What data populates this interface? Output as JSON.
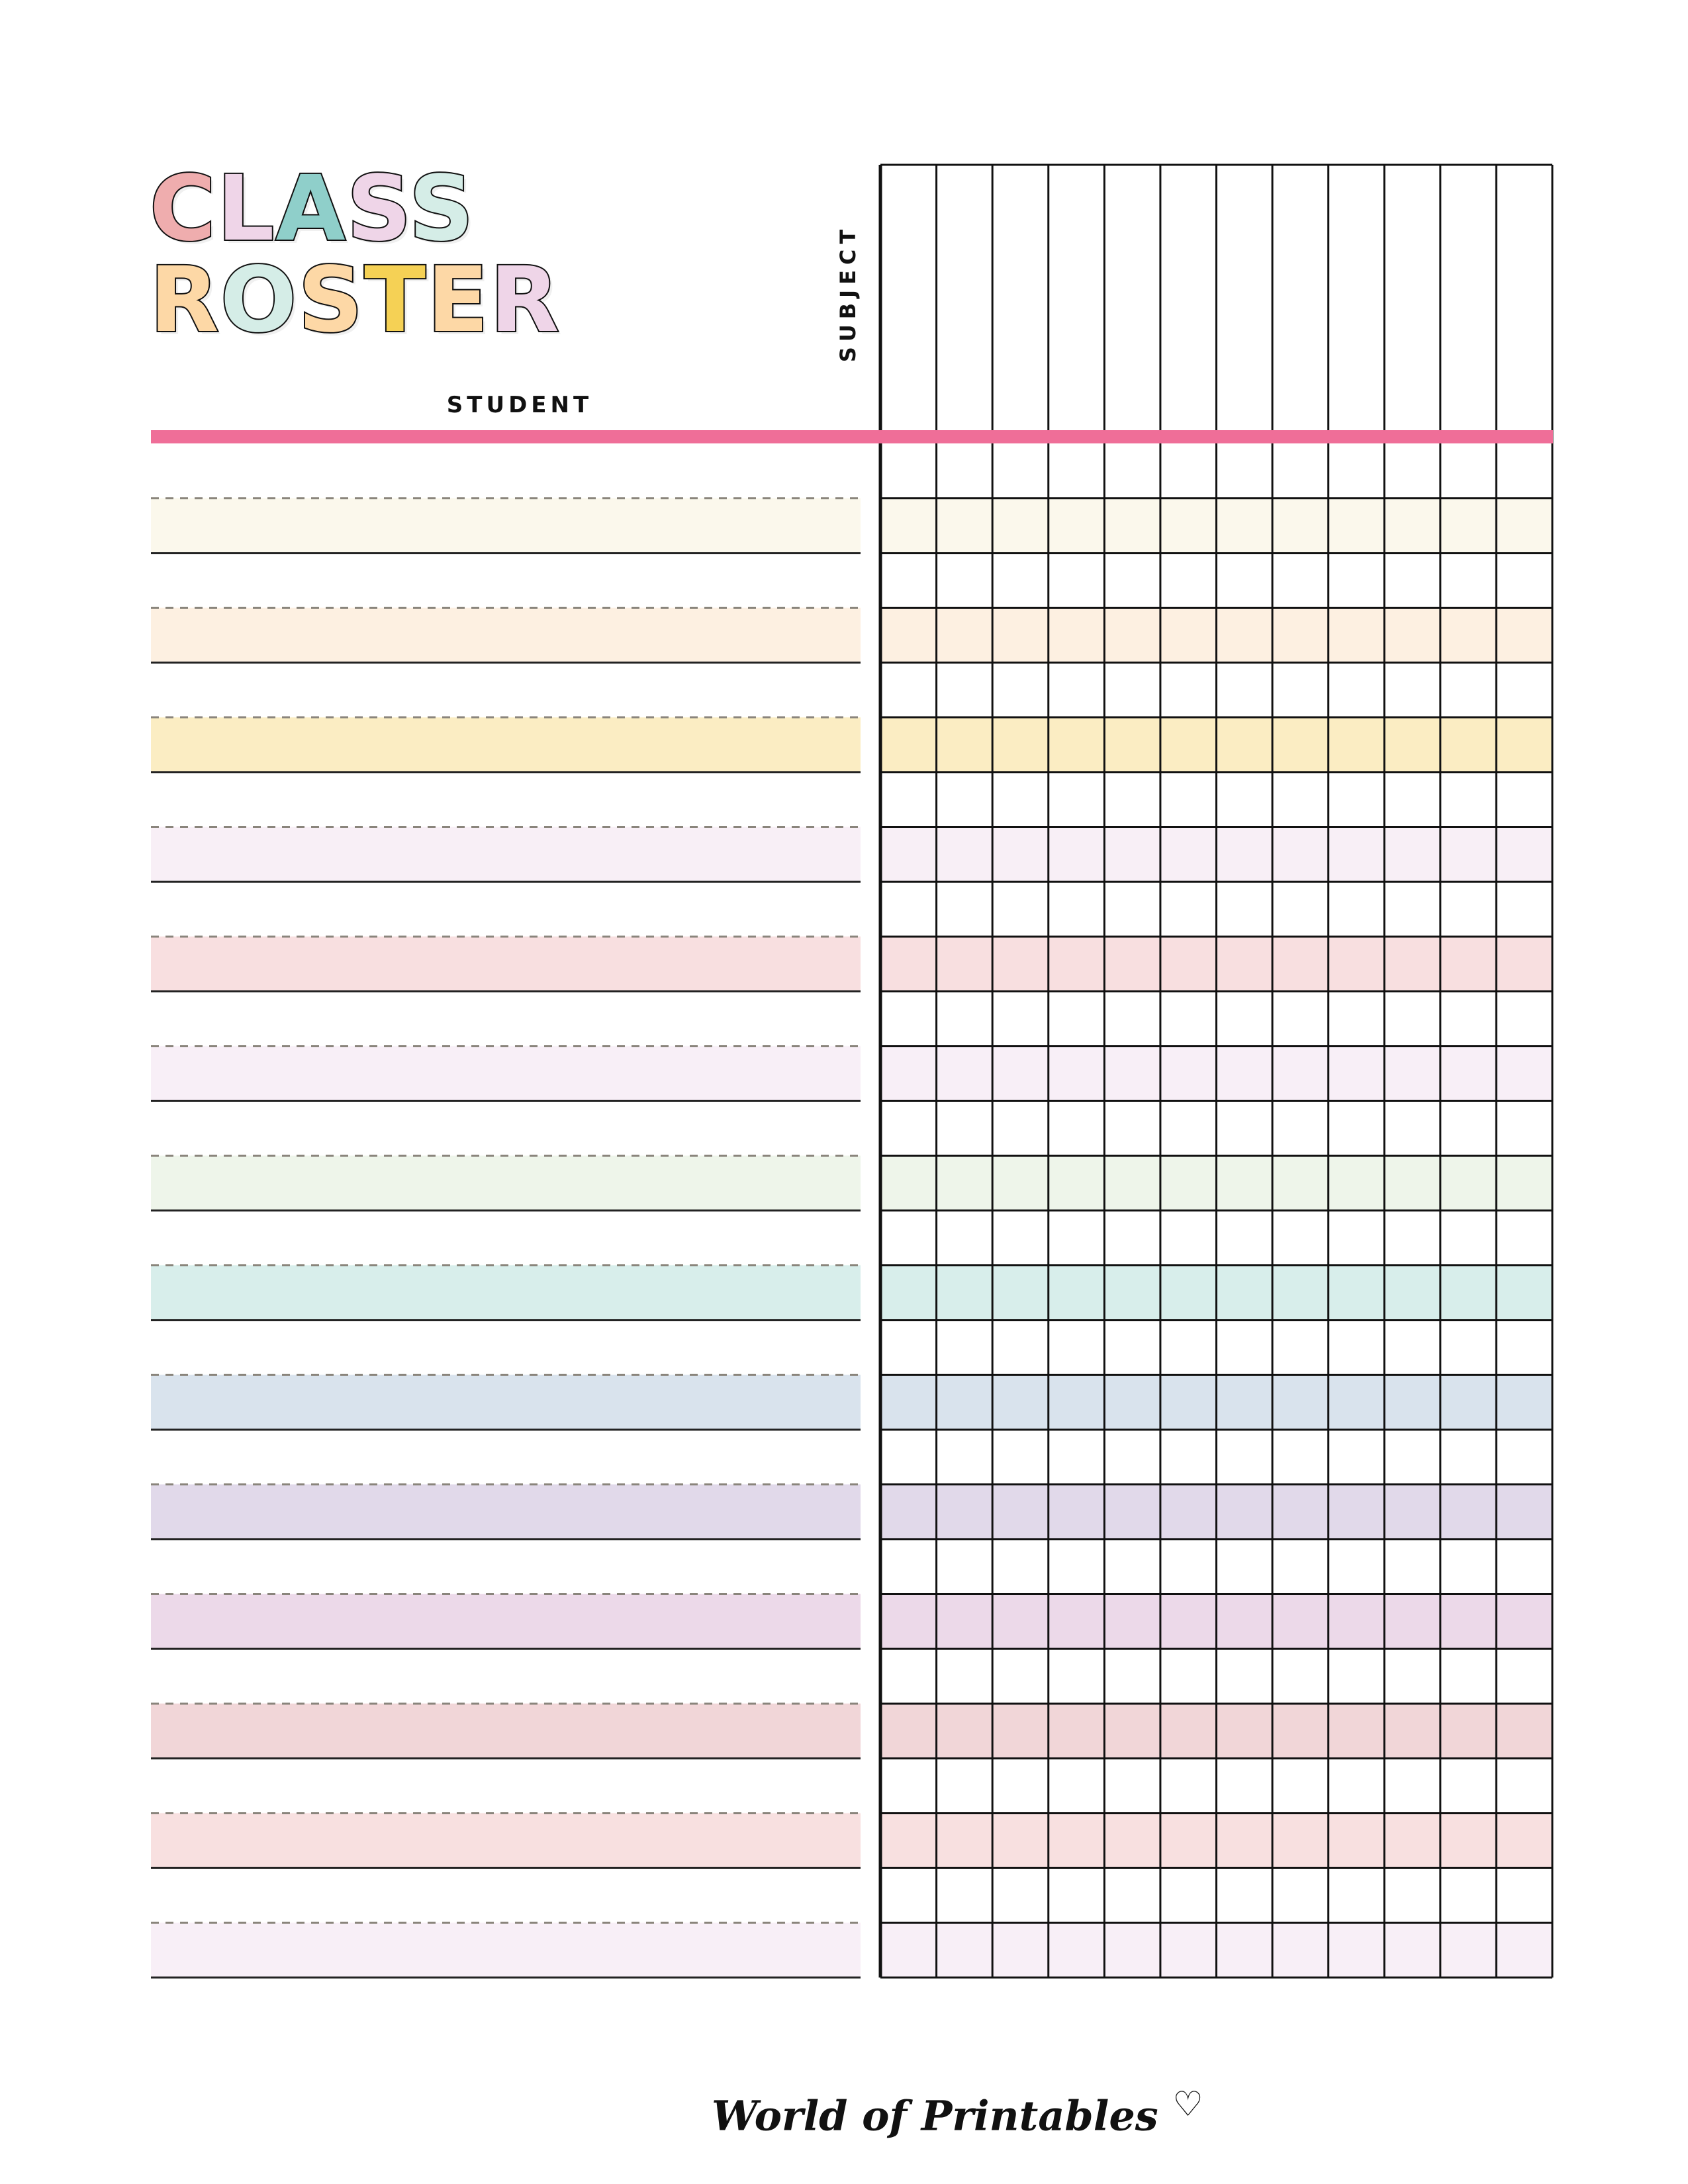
{
  "title": {
    "line1": {
      "text": "CLASS",
      "letter_colors": [
        "#efadae",
        "#efd5e8",
        "#8fcfca",
        "#efd5e8",
        "#d5ede7"
      ]
    },
    "line2": {
      "text": "ROSTER",
      "letter_colors": [
        "#fdd8a6",
        "#d5ede7",
        "#fdd8a6",
        "#f5d155",
        "#fdd8a6",
        "#efd5e8"
      ]
    }
  },
  "headers": {
    "student": "STUDENT",
    "subject": "SUBJECT"
  },
  "accent_color": "#ef6e98",
  "subject_columns": 12,
  "student_rows": 28,
  "band_colors": [
    "#fbf8ec",
    "#fdf0e1",
    "#fbedc3",
    "#f8eff6",
    "#f8dfe0",
    "#f8eff7",
    "#eef5ea",
    "#d8eeeb",
    "#d9e3ed",
    "#e1d9ea",
    "#ecd9e9",
    "#f1d6d8",
    "#f8e0e0",
    "#f8eff7"
  ],
  "footer": {
    "brand": "World of Printables",
    "heart_icon": "heart-outline-icon"
  }
}
